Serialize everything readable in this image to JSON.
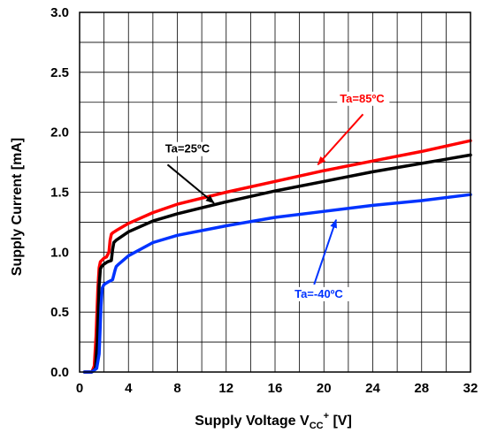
{
  "chart_data": {
    "type": "line",
    "xlabel": {
      "main": "Supply Voltage V",
      "sub": "CC",
      "sup": "+",
      "unit": " [V]"
    },
    "ylabel": "Supply Current [mA]",
    "xlim": [
      0,
      32
    ],
    "ylim": [
      0,
      3.0
    ],
    "x_ticks": [
      0,
      4,
      8,
      12,
      16,
      20,
      24,
      28,
      32
    ],
    "x_tick_labels": [
      "0",
      "4",
      "8",
      "12",
      "16",
      "20",
      "24",
      "28",
      "32"
    ],
    "y_ticks": [
      0,
      0.5,
      1.0,
      1.5,
      2.0,
      2.5,
      3.0
    ],
    "y_tick_labels": [
      "0.0",
      "0.5",
      "1.0",
      "1.5",
      "2.0",
      "2.5",
      "3.0"
    ],
    "x_grid_step": 2,
    "y_grid_step": 0.25,
    "grid": true,
    "series": [
      {
        "name": "Ta=85ºC",
        "color": "#ff0000",
        "x": [
          0.4,
          1.0,
          1.2,
          1.35,
          1.5,
          1.6,
          1.7,
          1.8,
          2.0,
          2.2,
          2.4,
          2.5,
          2.6,
          2.7,
          3.0,
          4,
          6,
          8,
          12,
          16,
          20,
          24,
          28,
          32
        ],
        "y": [
          0.0,
          0.0,
          0.05,
          0.3,
          0.7,
          0.87,
          0.92,
          0.93,
          0.95,
          0.96,
          1.0,
          1.1,
          1.15,
          1.16,
          1.18,
          1.24,
          1.33,
          1.4,
          1.5,
          1.59,
          1.68,
          1.76,
          1.84,
          1.93
        ]
      },
      {
        "name": "Ta=25ºC",
        "color": "#000000",
        "x": [
          0.4,
          1.0,
          1.3,
          1.45,
          1.6,
          1.7,
          1.8,
          2.0,
          2.3,
          2.6,
          2.7,
          2.8,
          3.0,
          4,
          6,
          8,
          12,
          16,
          20,
          24,
          28,
          32
        ],
        "y": [
          0.0,
          0.0,
          0.03,
          0.25,
          0.72,
          0.86,
          0.88,
          0.9,
          0.92,
          0.93,
          1.02,
          1.08,
          1.1,
          1.17,
          1.26,
          1.32,
          1.42,
          1.51,
          1.59,
          1.67,
          1.74,
          1.81
        ]
      },
      {
        "name": "Ta=-40ºC",
        "color": "#0033ff",
        "x": [
          0.4,
          1.0,
          1.4,
          1.6,
          1.75,
          1.85,
          2.0,
          2.3,
          2.7,
          2.9,
          3.0,
          3.2,
          4,
          6,
          8,
          12,
          16,
          20,
          24,
          28,
          32
        ],
        "y": [
          0.0,
          0.0,
          0.03,
          0.15,
          0.55,
          0.7,
          0.73,
          0.75,
          0.77,
          0.85,
          0.88,
          0.9,
          0.97,
          1.08,
          1.14,
          1.22,
          1.29,
          1.34,
          1.39,
          1.43,
          1.48
        ]
      }
    ],
    "annotations": [
      {
        "text": "Ta=85ºC",
        "color": "#ff0000",
        "text_x": 21.3,
        "text_y": 2.25,
        "arrow_from": [
          23.2,
          2.15
        ],
        "arrow_to": [
          19.5,
          1.73
        ]
      },
      {
        "text": "Ta=25ºC",
        "color": "#000000",
        "text_x": 7.0,
        "text_y": 1.83,
        "arrow_from": [
          7.2,
          1.73
        ],
        "arrow_to": [
          11.0,
          1.41
        ]
      },
      {
        "text": "Ta=-40ºC",
        "color": "#0033ff",
        "text_x": 17.6,
        "text_y": 0.62,
        "arrow_from": [
          19.2,
          0.73
        ],
        "arrow_to": [
          21.0,
          1.27
        ]
      }
    ]
  }
}
